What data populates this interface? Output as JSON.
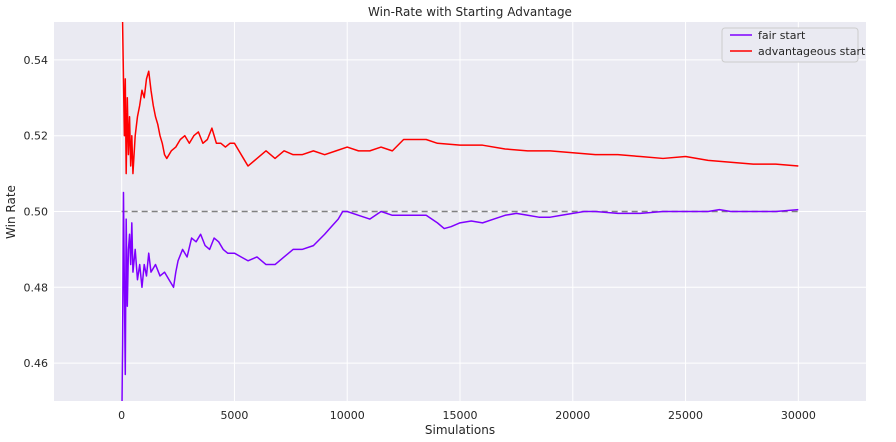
{
  "chart_data": {
    "type": "line",
    "title": "Win-Rate with Starting Advantage",
    "xlabel": "Simulations",
    "ylabel": "Win Rate",
    "xlim": [
      -3000,
      33000
    ],
    "ylim": [
      0.45,
      0.55
    ],
    "xticks": [
      0,
      5000,
      10000,
      15000,
      20000,
      25000,
      30000
    ],
    "yticks": [
      0.46,
      0.48,
      0.5,
      0.52,
      0.54
    ],
    "xtick_labels": [
      "0",
      "5000",
      "10000",
      "15000",
      "20000",
      "25000",
      "30000"
    ],
    "ytick_labels": [
      "0.46",
      "0.48",
      "0.50",
      "0.52",
      "0.54"
    ],
    "grid": true,
    "legend_position": "top-right",
    "reference_line": {
      "y": 0.5,
      "x_range": [
        0,
        30000
      ],
      "style": "dashed",
      "color": "#808080"
    },
    "series": [
      {
        "name": "fair start",
        "color": "#7f00ff",
        "x": [
          0,
          40,
          80,
          120,
          160,
          200,
          250,
          300,
          350,
          400,
          450,
          500,
          600,
          700,
          800,
          900,
          1000,
          1100,
          1200,
          1300,
          1500,
          1700,
          1900,
          2100,
          2300,
          2400,
          2500,
          2700,
          2900,
          3100,
          3300,
          3500,
          3700,
          3900,
          4100,
          4300,
          4500,
          4700,
          5000,
          5300,
          5600,
          6000,
          6400,
          6800,
          7200,
          7600,
          8000,
          8500,
          9000,
          9300,
          9600,
          9800,
          10000,
          10500,
          11000,
          11500,
          12000,
          12500,
          13000,
          13500,
          14000,
          14300,
          14600,
          15000,
          15500,
          16000,
          16500,
          17000,
          17500,
          18000,
          18500,
          19000,
          19500,
          20000,
          20500,
          21000,
          22000,
          23000,
          24000,
          25000,
          26000,
          26500,
          27000,
          28000,
          29000,
          30000
        ],
        "y": [
          0.44,
          0.465,
          0.505,
          0.48,
          0.457,
          0.498,
          0.475,
          0.49,
          0.494,
          0.486,
          0.497,
          0.484,
          0.49,
          0.482,
          0.486,
          0.48,
          0.486,
          0.483,
          0.489,
          0.484,
          0.486,
          0.483,
          0.484,
          0.482,
          0.48,
          0.484,
          0.487,
          0.49,
          0.488,
          0.493,
          0.492,
          0.494,
          0.491,
          0.49,
          0.493,
          0.492,
          0.49,
          0.489,
          0.489,
          0.488,
          0.487,
          0.488,
          0.486,
          0.486,
          0.488,
          0.49,
          0.49,
          0.491,
          0.494,
          0.496,
          0.498,
          0.5,
          0.5,
          0.499,
          0.498,
          0.5,
          0.499,
          0.499,
          0.499,
          0.499,
          0.497,
          0.4955,
          0.496,
          0.497,
          0.4975,
          0.497,
          0.498,
          0.499,
          0.4995,
          0.499,
          0.4985,
          0.4985,
          0.499,
          0.4995,
          0.5,
          0.5,
          0.4995,
          0.4995,
          0.5,
          0.5,
          0.5,
          0.5005,
          0.5,
          0.5,
          0.5,
          0.5005
        ]
      },
      {
        "name": "advantageous start",
        "color": "#ff0000",
        "x": [
          0,
          40,
          80,
          120,
          160,
          200,
          250,
          300,
          350,
          400,
          450,
          500,
          600,
          700,
          800,
          900,
          1000,
          1100,
          1200,
          1300,
          1400,
          1500,
          1600,
          1700,
          1800,
          1900,
          2000,
          2200,
          2400,
          2600,
          2800,
          3000,
          3200,
          3400,
          3600,
          3800,
          4000,
          4200,
          4400,
          4600,
          4800,
          5000,
          5200,
          5400,
          5600,
          6000,
          6400,
          6800,
          7200,
          7600,
          8000,
          8500,
          9000,
          9500,
          10000,
          10500,
          11000,
          11500,
          12000,
          12500,
          13000,
          13500,
          14000,
          15000,
          16000,
          17000,
          18000,
          19000,
          20000,
          21000,
          22000,
          23000,
          24000,
          25000,
          26000,
          27000,
          28000,
          29000,
          30000
        ],
        "y": [
          0.56,
          0.55,
          0.535,
          0.52,
          0.535,
          0.51,
          0.53,
          0.515,
          0.525,
          0.512,
          0.52,
          0.51,
          0.52,
          0.525,
          0.528,
          0.532,
          0.53,
          0.535,
          0.537,
          0.532,
          0.528,
          0.525,
          0.523,
          0.52,
          0.518,
          0.515,
          0.514,
          0.516,
          0.517,
          0.519,
          0.52,
          0.518,
          0.52,
          0.521,
          0.518,
          0.519,
          0.522,
          0.518,
          0.518,
          0.517,
          0.518,
          0.518,
          0.516,
          0.514,
          0.512,
          0.514,
          0.516,
          0.514,
          0.516,
          0.515,
          0.515,
          0.516,
          0.515,
          0.516,
          0.517,
          0.516,
          0.516,
          0.517,
          0.516,
          0.519,
          0.519,
          0.519,
          0.518,
          0.5175,
          0.5175,
          0.5165,
          0.516,
          0.516,
          0.5155,
          0.515,
          0.515,
          0.5145,
          0.514,
          0.5145,
          0.5135,
          0.513,
          0.5125,
          0.5125,
          0.512
        ]
      }
    ]
  }
}
